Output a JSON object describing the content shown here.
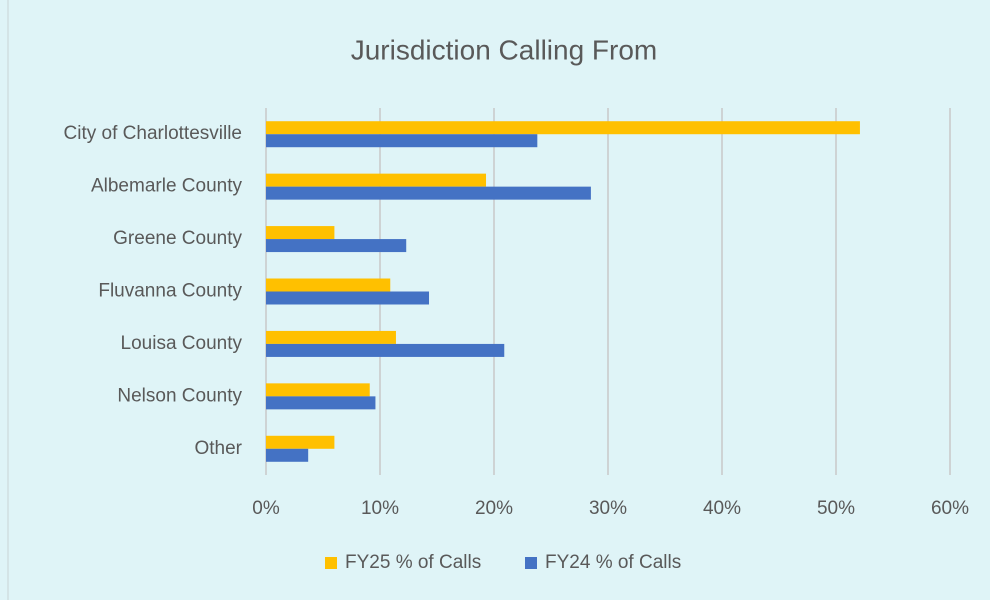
{
  "chart_data": {
    "type": "hbar",
    "title": "Jurisdiction Calling From",
    "categories": [
      "City of Charlottesville",
      "Albemarle County",
      "Greene County",
      "Fluvanna County",
      "Louisa County",
      "Nelson County",
      "Other"
    ],
    "series": [
      {
        "name": "FY25 % of Calls",
        "color": "#ffc000",
        "values": [
          52.1,
          19.3,
          6.0,
          10.9,
          11.4,
          9.1,
          6.0
        ]
      },
      {
        "name": "FY24 % of Calls",
        "color": "#4472c4",
        "values": [
          23.8,
          28.5,
          12.3,
          14.3,
          20.9,
          9.6,
          3.7
        ]
      }
    ],
    "xlim": [
      0,
      60
    ],
    "xticks": [
      {
        "value": 0,
        "label": "0%"
      },
      {
        "value": 10,
        "label": "10%"
      },
      {
        "value": 20,
        "label": "20%"
      },
      {
        "value": 30,
        "label": "30%"
      },
      {
        "value": 40,
        "label": "40%"
      },
      {
        "value": 50,
        "label": "50%"
      },
      {
        "value": 60,
        "label": "60%"
      }
    ],
    "grid": true,
    "legend": "bottom"
  }
}
